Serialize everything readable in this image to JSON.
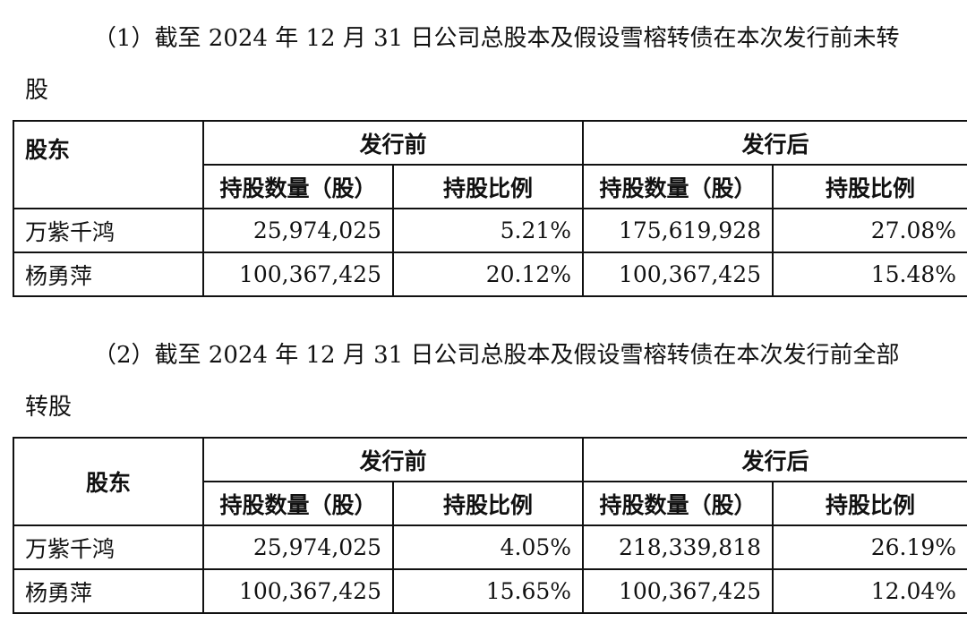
{
  "section1": {
    "paragraph": "（1）截至 2024 年 12 月 31 日公司总股本及假设雪榕转债在本次发行前未转",
    "continuation": "股",
    "table": {
      "header_shareholder": "股东",
      "header_before": "发行前",
      "header_after": "发行后",
      "sub_shares": "持股数量（股）",
      "sub_ratio": "持股比例",
      "rows": [
        {
          "name": "万紫千鸿",
          "before_shares": "25,974,025",
          "before_ratio": "5.21%",
          "after_shares": "175,619,928",
          "after_ratio": "27.08%"
        },
        {
          "name": "杨勇萍",
          "before_shares": "100,367,425",
          "before_ratio": "20.12%",
          "after_shares": "100,367,425",
          "after_ratio": "15.48%"
        }
      ]
    }
  },
  "section2": {
    "paragraph": "（2）截至 2024 年 12 月 31 日公司总股本及假设雪榕转债在本次发行前全部",
    "continuation": "转股",
    "table": {
      "header_shareholder": "股东",
      "header_before": "发行前",
      "header_after": "发行后",
      "sub_shares": "持股数量（股）",
      "sub_ratio": "持股比例",
      "rows": [
        {
          "name": "万紫千鸿",
          "before_shares": "25,974,025",
          "before_ratio": "4.05%",
          "after_shares": "218,339,818",
          "after_ratio": "26.19%"
        },
        {
          "name": "杨勇萍",
          "before_shares": "100,367,425",
          "before_ratio": "15.65%",
          "after_shares": "100,367,425",
          "after_ratio": "12.04%"
        }
      ]
    }
  }
}
